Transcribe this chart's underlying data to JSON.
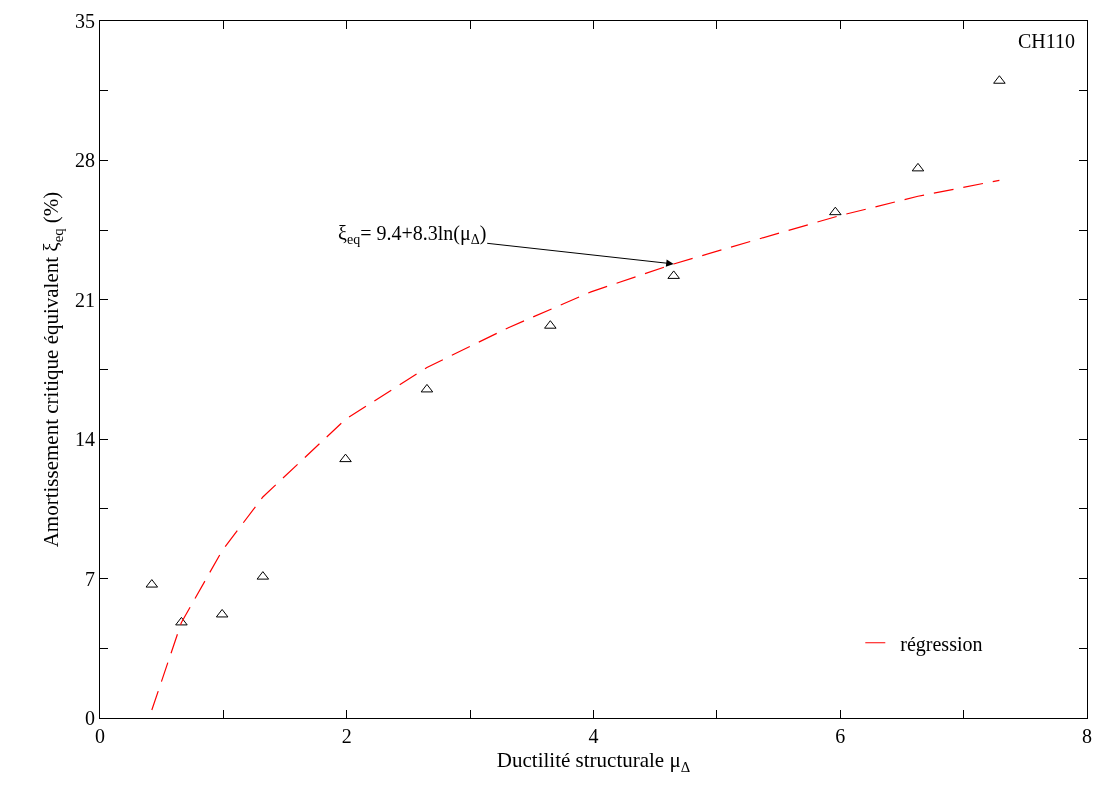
{
  "chart_data": {
    "type": "scatter",
    "xlabel": "Ductilité structurale μ$_{Δ}$",
    "ylabel": "Amortissement critique équivalent ξ$_{eq}$ (%)",
    "annotations": [
      "CH110",
      {
        "text": "ξ$_{eq}$= 9.4+8.3ln(μ$_{Δ}$)",
        "x": 4.65,
        "y": 22.8
      }
    ],
    "series": [
      {
        "color": "#000000",
        "marker": "triangle",
        "x": [
          0.42,
          0.66,
          0.99,
          1.32,
          1.99,
          2.65,
          3.65,
          4.65,
          5.96,
          6.63,
          7.29
        ],
        "values": [
          6.7,
          4.8,
          5.2,
          7.1,
          13.0,
          16.5,
          19.7,
          22.2,
          25.4,
          27.6,
          32.0
        ]
      },
      {
        "type": "line",
        "name": "régression",
        "color": "#ff0000",
        "line_style": "dashed",
        "marker": "none",
        "x": [
          0.42,
          0.66,
          0.99,
          1.32,
          1.99,
          2.65,
          3.31,
          3.98,
          4.65,
          5.31,
          5.98,
          6.63,
          7.29
        ],
        "values": [
          0.4,
          4.8,
          8.4,
          11.1,
          15.0,
          17.6,
          19.6,
          21.4,
          22.8,
          24.0,
          25.2,
          26.2,
          27.0
        ]
      }
    ],
    "xlim": [
      0,
      8
    ],
    "xticks": [
      0,
      {
        "value": 1,
        "label": null
      },
      2,
      {
        "value": 3,
        "label": null
      },
      4,
      {
        "value": 5,
        "label": null
      },
      6,
      {
        "value": 7,
        "label": null
      },
      8
    ],
    "ylim": [
      0,
      35
    ],
    "yticks": [
      0,
      {
        "value": 3.5,
        "label": null
      },
      7,
      {
        "value": 10.5,
        "label": null
      },
      14,
      {
        "value": 17.5,
        "label": null
      },
      21,
      {
        "value": 24.5,
        "label": null
      },
      28,
      {
        "value": 31.5,
        "label": null
      },
      35
    ],
    "grid": false,
    "legend": "bottom right"
  }
}
